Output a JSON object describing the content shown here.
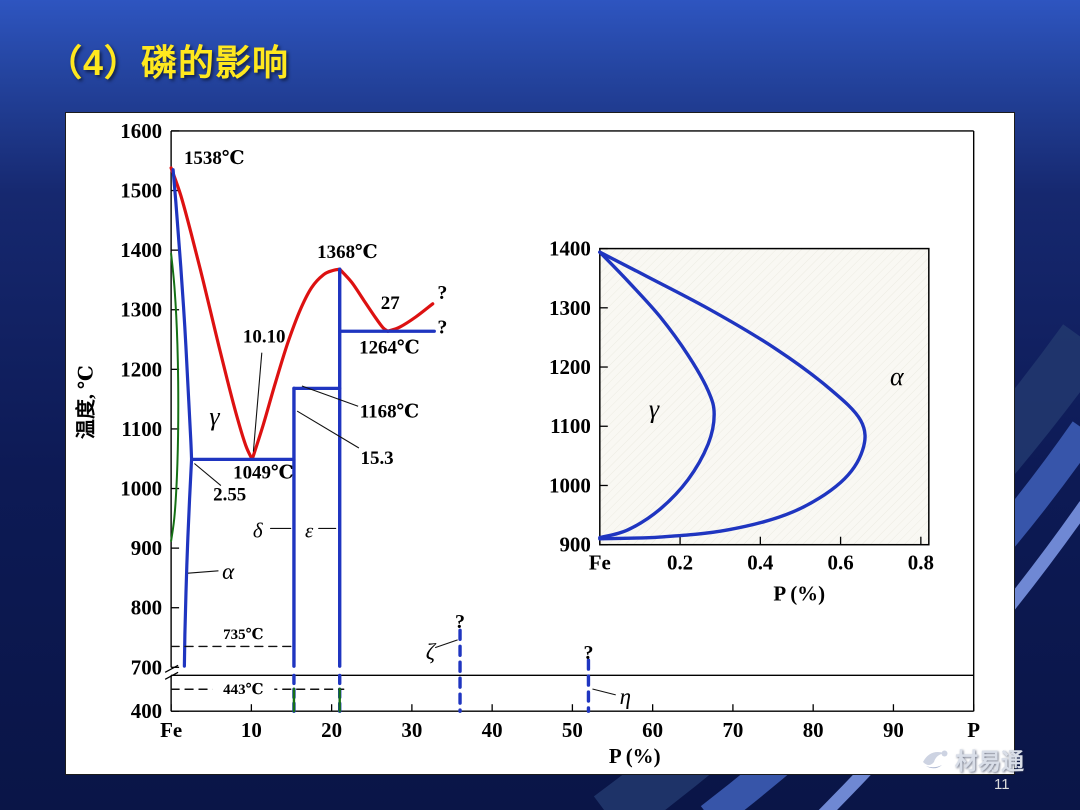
{
  "slide": {
    "title": "（4）磷的影响",
    "page_number": "11",
    "brand": "材易通"
  },
  "colors": {
    "title_yellow": "#ffe81e",
    "liquidus_red": "#dd1111",
    "phase_line_blue": "#1f35c0",
    "gamma_loop_green": "#157015",
    "bg_top_blue": "#2e55c0",
    "bg_bottom_navy": "#0a1547"
  },
  "chart_data": [
    {
      "id": "main",
      "type": "line",
      "xlabel": "P (%)",
      "ylabel": "温度, ℃",
      "axis_break": {
        "between": [
          400,
          700
        ]
      },
      "x_ticks": [
        {
          "v": 0,
          "label": "Fe"
        },
        {
          "v": 10,
          "label": "10"
        },
        {
          "v": 20,
          "label": "20"
        },
        {
          "v": 30,
          "label": "30"
        },
        {
          "v": 40,
          "label": "40"
        },
        {
          "v": 50,
          "label": "50"
        },
        {
          "v": 60,
          "label": "60"
        },
        {
          "v": 70,
          "label": "70"
        },
        {
          "v": 80,
          "label": "80"
        },
        {
          "v": 90,
          "label": "90"
        },
        {
          "v": 100,
          "label": "P"
        }
      ],
      "y_ticks": [
        {
          "v": 1600,
          "label": "1600"
        },
        {
          "v": 1500,
          "label": "1500"
        },
        {
          "v": 1400,
          "label": "1400"
        },
        {
          "v": 1300,
          "label": "1300"
        },
        {
          "v": 1200,
          "label": "1200"
        },
        {
          "v": 1100,
          "label": "1100"
        },
        {
          "v": 1000,
          "label": "1000"
        },
        {
          "v": 900,
          "label": "900"
        },
        {
          "v": 800,
          "label": "800"
        },
        {
          "v": 700,
          "label": "700"
        },
        {
          "v": 400,
          "label": "400"
        }
      ],
      "series": [
        {
          "name": "liquidus-fe-side",
          "color": "#dd1111",
          "width": 3.2,
          "smooth": true,
          "points": [
            [
              0,
              1538
            ],
            [
              1.2,
              1492
            ],
            [
              2.5,
              1428
            ],
            [
              4,
              1348
            ],
            [
              5.5,
              1264
            ],
            [
              7,
              1182
            ],
            [
              8.3,
              1116
            ],
            [
              9.3,
              1072
            ],
            [
              10.1,
              1049
            ]
          ]
        },
        {
          "name": "liquidus-rising",
          "color": "#dd1111",
          "width": 3.2,
          "smooth": true,
          "points": [
            [
              10.1,
              1049
            ],
            [
              11.5,
              1108
            ],
            [
              13,
              1178
            ],
            [
              14.5,
              1243
            ],
            [
              16,
              1297
            ],
            [
              17.5,
              1337
            ],
            [
              19,
              1359
            ],
            [
              20.2,
              1366
            ],
            [
              21,
              1368
            ]
          ]
        },
        {
          "name": "liquidus-falling",
          "color": "#dd1111",
          "width": 3.2,
          "smooth": true,
          "points": [
            [
              21,
              1368
            ],
            [
              22.5,
              1346
            ],
            [
              24,
              1316
            ],
            [
              25.5,
              1286
            ],
            [
              26.4,
              1270
            ],
            [
              27,
              1264
            ]
          ]
        },
        {
          "name": "liquidus-uncertain",
          "color": "#dd1111",
          "width": 3.2,
          "smooth": true,
          "points": [
            [
              27,
              1264
            ],
            [
              28.5,
              1271
            ],
            [
              30.5,
              1288
            ],
            [
              32.6,
              1310
            ]
          ]
        },
        {
          "name": "solidus-fe-side",
          "color": "#1f35c0",
          "width": 3.2,
          "smooth": true,
          "points": [
            [
              0.25,
              1535
            ],
            [
              0.7,
              1462
            ],
            [
              1.2,
              1372
            ],
            [
              1.7,
              1272
            ],
            [
              2.1,
              1172
            ],
            [
              2.45,
              1082
            ],
            [
              2.55,
              1049
            ]
          ]
        },
        {
          "name": "alpha-solvus",
          "color": "#1f35c0",
          "width": 3.2,
          "smooth": true,
          "points": [
            [
              2.55,
              1049
            ],
            [
              2.3,
              982
            ],
            [
              2.05,
              905
            ],
            [
              1.85,
              825
            ],
            [
              1.72,
              755
            ],
            [
              1.65,
              702
            ]
          ]
        },
        {
          "name": "eutectic-isotherm-1049",
          "color": "#1f35c0",
          "width": 3.2,
          "points": [
            [
              2.55,
              1049
            ],
            [
              15.3,
              1049
            ]
          ]
        },
        {
          "name": "isotherm-1168",
          "color": "#1f35c0",
          "width": 3.2,
          "points": [
            [
              15.3,
              1168
            ],
            [
              21,
              1168
            ]
          ]
        },
        {
          "name": "isotherm-1264",
          "color": "#1f35c0",
          "width": 3.2,
          "points": [
            [
              21,
              1264
            ],
            [
              32.8,
              1264
            ]
          ]
        },
        {
          "name": "fe3p-vertical-solid",
          "color": "#1f35c0",
          "width": 3.4,
          "points": [
            [
              15.3,
              702
            ],
            [
              15.3,
              1168
            ]
          ]
        },
        {
          "name": "fe3p-vertical-break",
          "color": "#1f35c0",
          "width": 3.4,
          "dash": "8 6",
          "points": [
            [
              15.3,
              698
            ],
            [
              15.3,
              400
            ]
          ]
        },
        {
          "name": "fe2p-vertical-solid",
          "color": "#1f35c0",
          "width": 3.4,
          "points": [
            [
              21,
              702
            ],
            [
              21,
              1368
            ]
          ]
        },
        {
          "name": "fe2p-vertical-break",
          "color": "#1f35c0",
          "width": 3.4,
          "dash": "8 6",
          "points": [
            [
              21,
              698
            ],
            [
              21,
              400
            ]
          ]
        },
        {
          "name": "zeta-vertical-dashed",
          "color": "#1f35c0",
          "width": 3.4,
          "dash": "9 7",
          "points": [
            [
              36,
              762
            ],
            [
              36,
              400
            ]
          ]
        },
        {
          "name": "eta-vertical-dashed",
          "color": "#1f35c0",
          "width": 3.4,
          "dash": "9 7",
          "points": [
            [
              52,
              712
            ],
            [
              52,
              400
            ]
          ]
        },
        {
          "name": "gamma-loop-small",
          "color": "#157015",
          "width": 2,
          "smooth": true,
          "points": [
            [
              0,
              1394
            ],
            [
              0.45,
              1332
            ],
            [
              0.78,
              1242
            ],
            [
              0.9,
              1140
            ],
            [
              0.78,
              1042
            ],
            [
              0.45,
              958
            ],
            [
              0,
              912
            ]
          ]
        },
        {
          "name": "isotherm-735-dashed",
          "color": "#111111",
          "width": 1.4,
          "dash": "8 6",
          "points": [
            [
              0,
              735
            ],
            [
              15.3,
              735
            ]
          ]
        },
        {
          "name": "isotherm-443-dashed",
          "color": "#111111",
          "width": 1.4,
          "dash": "8 6",
          "points": [
            [
              0,
              443
            ],
            [
              21.5,
              443
            ]
          ]
        },
        {
          "name": "delta-leader-dash",
          "color": "#111111",
          "width": 1.2,
          "points": [
            [
              12.4,
              933
            ],
            [
              14.9,
              933
            ]
          ]
        },
        {
          "name": "epsilon-leader-dash",
          "color": "#111111",
          "width": 1.2,
          "points": [
            [
              18.4,
              933
            ],
            [
              20.5,
              933
            ]
          ]
        },
        {
          "name": "green-axis-tick-15",
          "color": "#157015",
          "width": 2.4,
          "points": [
            [
              15.3,
              450
            ],
            [
              15.3,
              400
            ]
          ]
        },
        {
          "name": "green-axis-tick-21",
          "color": "#157015",
          "width": 2.4,
          "points": [
            [
              21,
              450
            ],
            [
              21,
              400
            ]
          ]
        }
      ],
      "leaders": [
        {
          "from": [
            11.3,
            1228
          ],
          "to": [
            10.25,
            1062
          ]
        },
        {
          "from": [
            23.3,
            1138
          ],
          "to": [
            16.3,
            1172
          ]
        },
        {
          "from": [
            23.4,
            1068
          ],
          "to": [
            15.7,
            1130
          ]
        },
        {
          "from": [
            6.2,
            1005
          ],
          "to": [
            2.9,
            1042
          ]
        },
        {
          "from": [
            5.9,
            862
          ],
          "to": [
            2.1,
            858
          ]
        },
        {
          "from": [
            32.9,
            733
          ],
          "to": [
            35.7,
            746
          ]
        },
        {
          "from": [
            55.4,
            432
          ],
          "to": [
            52.5,
            448
          ]
        }
      ],
      "annotations": [
        {
          "text": "1538℃",
          "x": 1.6,
          "t": 1556,
          "anchor": "start",
          "size": 19
        },
        {
          "text": "1368℃",
          "x": 18.2,
          "t": 1398,
          "anchor": "start",
          "size": 19
        },
        {
          "text": "27",
          "x": 27.3,
          "t": 1312,
          "anchor": "middle",
          "size": 19
        },
        {
          "text": "?",
          "x": 33.8,
          "t": 1330,
          "anchor": "middle",
          "size": 20
        },
        {
          "text": "?",
          "x": 33.8,
          "t": 1272,
          "anchor": "middle",
          "size": 20
        },
        {
          "text": "1264℃",
          "x": 27.2,
          "t": 1238,
          "anchor": "middle",
          "size": 19
        },
        {
          "text": "10.10",
          "x": 11.6,
          "t": 1256,
          "anchor": "middle",
          "size": 19
        },
        {
          "text": "1168℃",
          "x": 23.5,
          "t": 1130,
          "anchor": "start",
          "size": 19
        },
        {
          "text": "15.3",
          "x": 23.6,
          "t": 1052,
          "anchor": "start",
          "size": 19
        },
        {
          "text": "1049℃",
          "x": 11.5,
          "t": 1028,
          "anchor": "middle",
          "size": 19
        },
        {
          "text": "2.55",
          "x": 7.3,
          "t": 991,
          "anchor": "middle",
          "size": 19
        },
        {
          "text": "γ",
          "x": 5.4,
          "t": 1122,
          "anchor": "middle",
          "size": 26,
          "italic": true
        },
        {
          "text": "δ",
          "x": 10.8,
          "t": 930,
          "anchor": "middle",
          "size": 21,
          "italic": true
        },
        {
          "text": "ε",
          "x": 17.2,
          "t": 930,
          "anchor": "middle",
          "size": 21,
          "italic": true
        },
        {
          "text": "α",
          "x": 7.1,
          "t": 862,
          "anchor": "middle",
          "size": 23,
          "italic": true
        },
        {
          "text": "735℃",
          "x": 9,
          "t": 756,
          "anchor": "middle",
          "size": 15
        },
        {
          "text": "443℃",
          "x": 9,
          "t": 452,
          "anchor": "middle",
          "size": 15,
          "bg": true
        },
        {
          "text": "ζ",
          "x": 32.3,
          "t": 727,
          "anchor": "middle",
          "size": 23,
          "italic": true
        },
        {
          "text": "?",
          "x": 36,
          "t": 778,
          "anchor": "middle",
          "size": 20
        },
        {
          "text": "η",
          "x": 56.6,
          "t": 430,
          "anchor": "middle",
          "size": 23,
          "italic": true
        },
        {
          "text": "?",
          "x": 52,
          "t": 726,
          "anchor": "middle",
          "size": 20
        }
      ]
    },
    {
      "id": "inset",
      "type": "line",
      "xlabel": "P (%)",
      "x_ticks": [
        {
          "v": 0,
          "label": "Fe"
        },
        {
          "v": 0.2,
          "label": "0.2"
        },
        {
          "v": 0.4,
          "label": "0.4"
        },
        {
          "v": 0.6,
          "label": "0.6"
        },
        {
          "v": 0.8,
          "label": "0.8"
        }
      ],
      "y_ticks": [
        {
          "v": 1400,
          "label": "1400"
        },
        {
          "v": 1300,
          "label": "1300"
        },
        {
          "v": 1200,
          "label": "1200"
        },
        {
          "v": 1100,
          "label": "1100"
        },
        {
          "v": 1000,
          "label": "1000"
        },
        {
          "v": 900,
          "label": "900"
        }
      ],
      "series": [
        {
          "name": "gamma-loop-inner-boundary",
          "color": "#1f35c0",
          "width": 3.4,
          "smooth": true,
          "points": [
            [
              0,
              1394
            ],
            [
              0.07,
              1345
            ],
            [
              0.15,
              1285
            ],
            [
              0.22,
              1220
            ],
            [
              0.27,
              1160
            ],
            [
              0.285,
              1120
            ],
            [
              0.27,
              1070
            ],
            [
              0.22,
              1010
            ],
            [
              0.15,
              960
            ],
            [
              0.07,
              925
            ],
            [
              0,
              912
            ]
          ]
        },
        {
          "name": "gamma-loop-outer-boundary",
          "color": "#1f35c0",
          "width": 3.4,
          "smooth": true,
          "points": [
            [
              0,
              1394
            ],
            [
              0.12,
              1352
            ],
            [
              0.28,
              1295
            ],
            [
              0.44,
              1230
            ],
            [
              0.57,
              1165
            ],
            [
              0.65,
              1110
            ],
            [
              0.655,
              1060
            ],
            [
              0.6,
              1005
            ],
            [
              0.48,
              955
            ],
            [
              0.32,
              925
            ],
            [
              0.15,
              913
            ],
            [
              0,
              910
            ]
          ]
        }
      ],
      "leaders": [],
      "annotations": [
        {
          "text": "γ",
          "x": 0.135,
          "t": 1130,
          "anchor": "middle",
          "size": 26,
          "italic": true
        },
        {
          "text": "α",
          "x": 0.74,
          "t": 1185,
          "anchor": "middle",
          "size": 26,
          "italic": true
        }
      ]
    }
  ]
}
